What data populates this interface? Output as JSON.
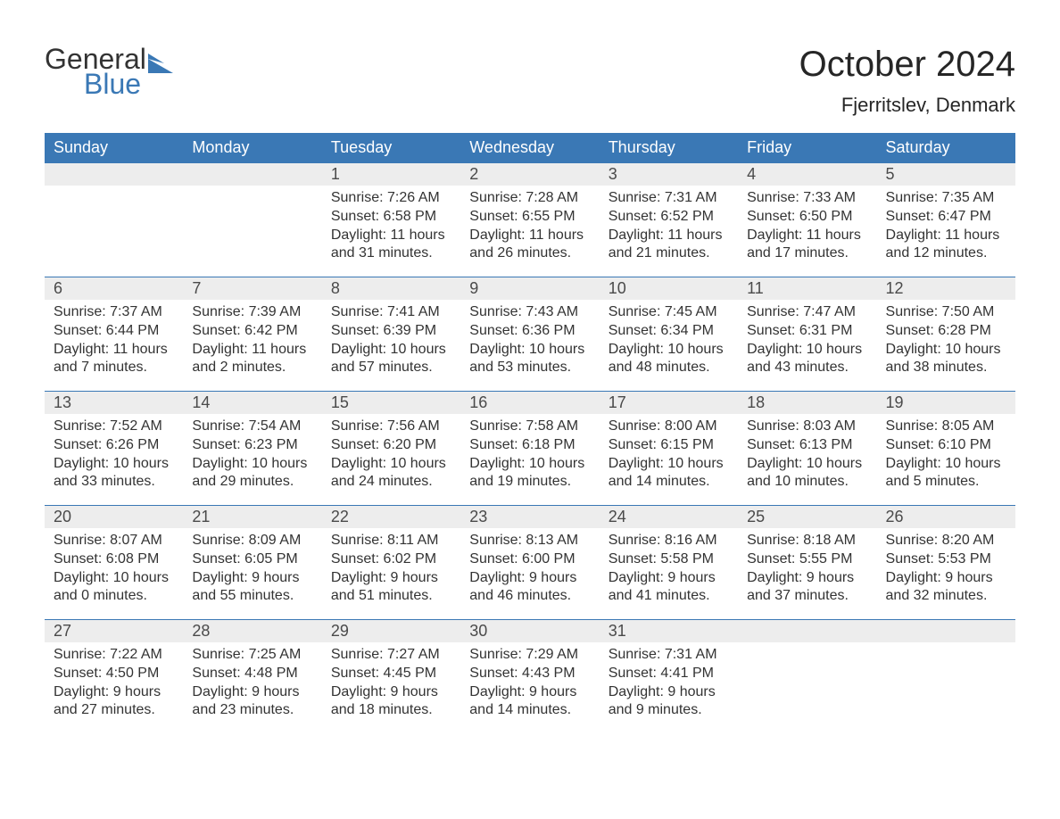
{
  "branding": {
    "logo_top": "General",
    "logo_bottom": "Blue",
    "logo_accent_color": "#3a78b5",
    "logo_text_color": "#333333"
  },
  "header": {
    "month_title": "October 2024",
    "location": "Fjerritslev, Denmark"
  },
  "style": {
    "header_bg": "#3a78b5",
    "header_text": "#ffffff",
    "daynum_bg": "#ededed",
    "daynum_border": "#3a78b5",
    "body_text": "#333333",
    "page_bg": "#ffffff",
    "title_fontsize": 40,
    "location_fontsize": 22,
    "dayheader_fontsize": 18,
    "cell_fontsize": 16
  },
  "day_headers": [
    "Sunday",
    "Monday",
    "Tuesday",
    "Wednesday",
    "Thursday",
    "Friday",
    "Saturday"
  ],
  "weeks": [
    [
      null,
      null,
      {
        "num": "1",
        "sunrise": "7:26 AM",
        "sunset": "6:58 PM",
        "daylight": "11 hours and 31 minutes."
      },
      {
        "num": "2",
        "sunrise": "7:28 AM",
        "sunset": "6:55 PM",
        "daylight": "11 hours and 26 minutes."
      },
      {
        "num": "3",
        "sunrise": "7:31 AM",
        "sunset": "6:52 PM",
        "daylight": "11 hours and 21 minutes."
      },
      {
        "num": "4",
        "sunrise": "7:33 AM",
        "sunset": "6:50 PM",
        "daylight": "11 hours and 17 minutes."
      },
      {
        "num": "5",
        "sunrise": "7:35 AM",
        "sunset": "6:47 PM",
        "daylight": "11 hours and 12 minutes."
      }
    ],
    [
      {
        "num": "6",
        "sunrise": "7:37 AM",
        "sunset": "6:44 PM",
        "daylight": "11 hours and 7 minutes."
      },
      {
        "num": "7",
        "sunrise": "7:39 AM",
        "sunset": "6:42 PM",
        "daylight": "11 hours and 2 minutes."
      },
      {
        "num": "8",
        "sunrise": "7:41 AM",
        "sunset": "6:39 PM",
        "daylight": "10 hours and 57 minutes."
      },
      {
        "num": "9",
        "sunrise": "7:43 AM",
        "sunset": "6:36 PM",
        "daylight": "10 hours and 53 minutes."
      },
      {
        "num": "10",
        "sunrise": "7:45 AM",
        "sunset": "6:34 PM",
        "daylight": "10 hours and 48 minutes."
      },
      {
        "num": "11",
        "sunrise": "7:47 AM",
        "sunset": "6:31 PM",
        "daylight": "10 hours and 43 minutes."
      },
      {
        "num": "12",
        "sunrise": "7:50 AM",
        "sunset": "6:28 PM",
        "daylight": "10 hours and 38 minutes."
      }
    ],
    [
      {
        "num": "13",
        "sunrise": "7:52 AM",
        "sunset": "6:26 PM",
        "daylight": "10 hours and 33 minutes."
      },
      {
        "num": "14",
        "sunrise": "7:54 AM",
        "sunset": "6:23 PM",
        "daylight": "10 hours and 29 minutes."
      },
      {
        "num": "15",
        "sunrise": "7:56 AM",
        "sunset": "6:20 PM",
        "daylight": "10 hours and 24 minutes."
      },
      {
        "num": "16",
        "sunrise": "7:58 AM",
        "sunset": "6:18 PM",
        "daylight": "10 hours and 19 minutes."
      },
      {
        "num": "17",
        "sunrise": "8:00 AM",
        "sunset": "6:15 PM",
        "daylight": "10 hours and 14 minutes."
      },
      {
        "num": "18",
        "sunrise": "8:03 AM",
        "sunset": "6:13 PM",
        "daylight": "10 hours and 10 minutes."
      },
      {
        "num": "19",
        "sunrise": "8:05 AM",
        "sunset": "6:10 PM",
        "daylight": "10 hours and 5 minutes."
      }
    ],
    [
      {
        "num": "20",
        "sunrise": "8:07 AM",
        "sunset": "6:08 PM",
        "daylight": "10 hours and 0 minutes."
      },
      {
        "num": "21",
        "sunrise": "8:09 AM",
        "sunset": "6:05 PM",
        "daylight": "9 hours and 55 minutes."
      },
      {
        "num": "22",
        "sunrise": "8:11 AM",
        "sunset": "6:02 PM",
        "daylight": "9 hours and 51 minutes."
      },
      {
        "num": "23",
        "sunrise": "8:13 AM",
        "sunset": "6:00 PM",
        "daylight": "9 hours and 46 minutes."
      },
      {
        "num": "24",
        "sunrise": "8:16 AM",
        "sunset": "5:58 PM",
        "daylight": "9 hours and 41 minutes."
      },
      {
        "num": "25",
        "sunrise": "8:18 AM",
        "sunset": "5:55 PM",
        "daylight": "9 hours and 37 minutes."
      },
      {
        "num": "26",
        "sunrise": "8:20 AM",
        "sunset": "5:53 PM",
        "daylight": "9 hours and 32 minutes."
      }
    ],
    [
      {
        "num": "27",
        "sunrise": "7:22 AM",
        "sunset": "4:50 PM",
        "daylight": "9 hours and 27 minutes."
      },
      {
        "num": "28",
        "sunrise": "7:25 AM",
        "sunset": "4:48 PM",
        "daylight": "9 hours and 23 minutes."
      },
      {
        "num": "29",
        "sunrise": "7:27 AM",
        "sunset": "4:45 PM",
        "daylight": "9 hours and 18 minutes."
      },
      {
        "num": "30",
        "sunrise": "7:29 AM",
        "sunset": "4:43 PM",
        "daylight": "9 hours and 14 minutes."
      },
      {
        "num": "31",
        "sunrise": "7:31 AM",
        "sunset": "4:41 PM",
        "daylight": "9 hours and 9 minutes."
      },
      null,
      null
    ]
  ],
  "labels": {
    "sunrise_prefix": "Sunrise: ",
    "sunset_prefix": "Sunset: ",
    "daylight_prefix": "Daylight: "
  }
}
